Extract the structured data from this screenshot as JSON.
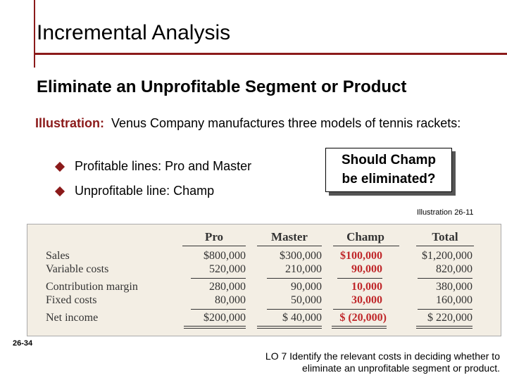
{
  "header": {
    "title": "Incremental Analysis",
    "subtitle": "Eliminate an Unprofitable Segment or Product"
  },
  "intro": {
    "label": "Illustration:",
    "text": "Venus Company manufactures three models of tennis rackets:"
  },
  "bullets": [
    "Profitable lines:  Pro and Master",
    "Unprofitable line:  Champ"
  ],
  "callout": {
    "line1": "Should Champ",
    "line2": "be eliminated?"
  },
  "illustration_ref": "Illustration 26-11",
  "table": {
    "headers": [
      "Pro",
      "Master",
      "Champ",
      "Total"
    ],
    "rows": [
      {
        "label": "Sales",
        "values": [
          "$800,000",
          "$300,000",
          "$100,000",
          "$1,200,000"
        ]
      },
      {
        "label": "Variable costs",
        "values": [
          "520,000",
          "210,000",
          "90,000",
          "820,000"
        ]
      },
      {
        "label": "Contribution margin",
        "values": [
          "280,000",
          "90,000",
          "10,000",
          "380,000"
        ]
      },
      {
        "label": "Fixed costs",
        "values": [
          "80,000",
          "50,000",
          "30,000",
          "160,000"
        ]
      },
      {
        "label": "Net income",
        "values": [
          "$200,000",
          "$ 40,000",
          "$ (20,000)",
          "$ 220,000"
        ]
      }
    ]
  },
  "footer": {
    "page_number": "26-34",
    "lo_line1": "LO 7  Identify the relevant costs in deciding whether to",
    "lo_line2": "eliminate an unprofitable segment or product."
  },
  "colors": {
    "accent": "#8b1a1a",
    "champ": "#c0282b",
    "table_bg": "#f3eee4"
  }
}
